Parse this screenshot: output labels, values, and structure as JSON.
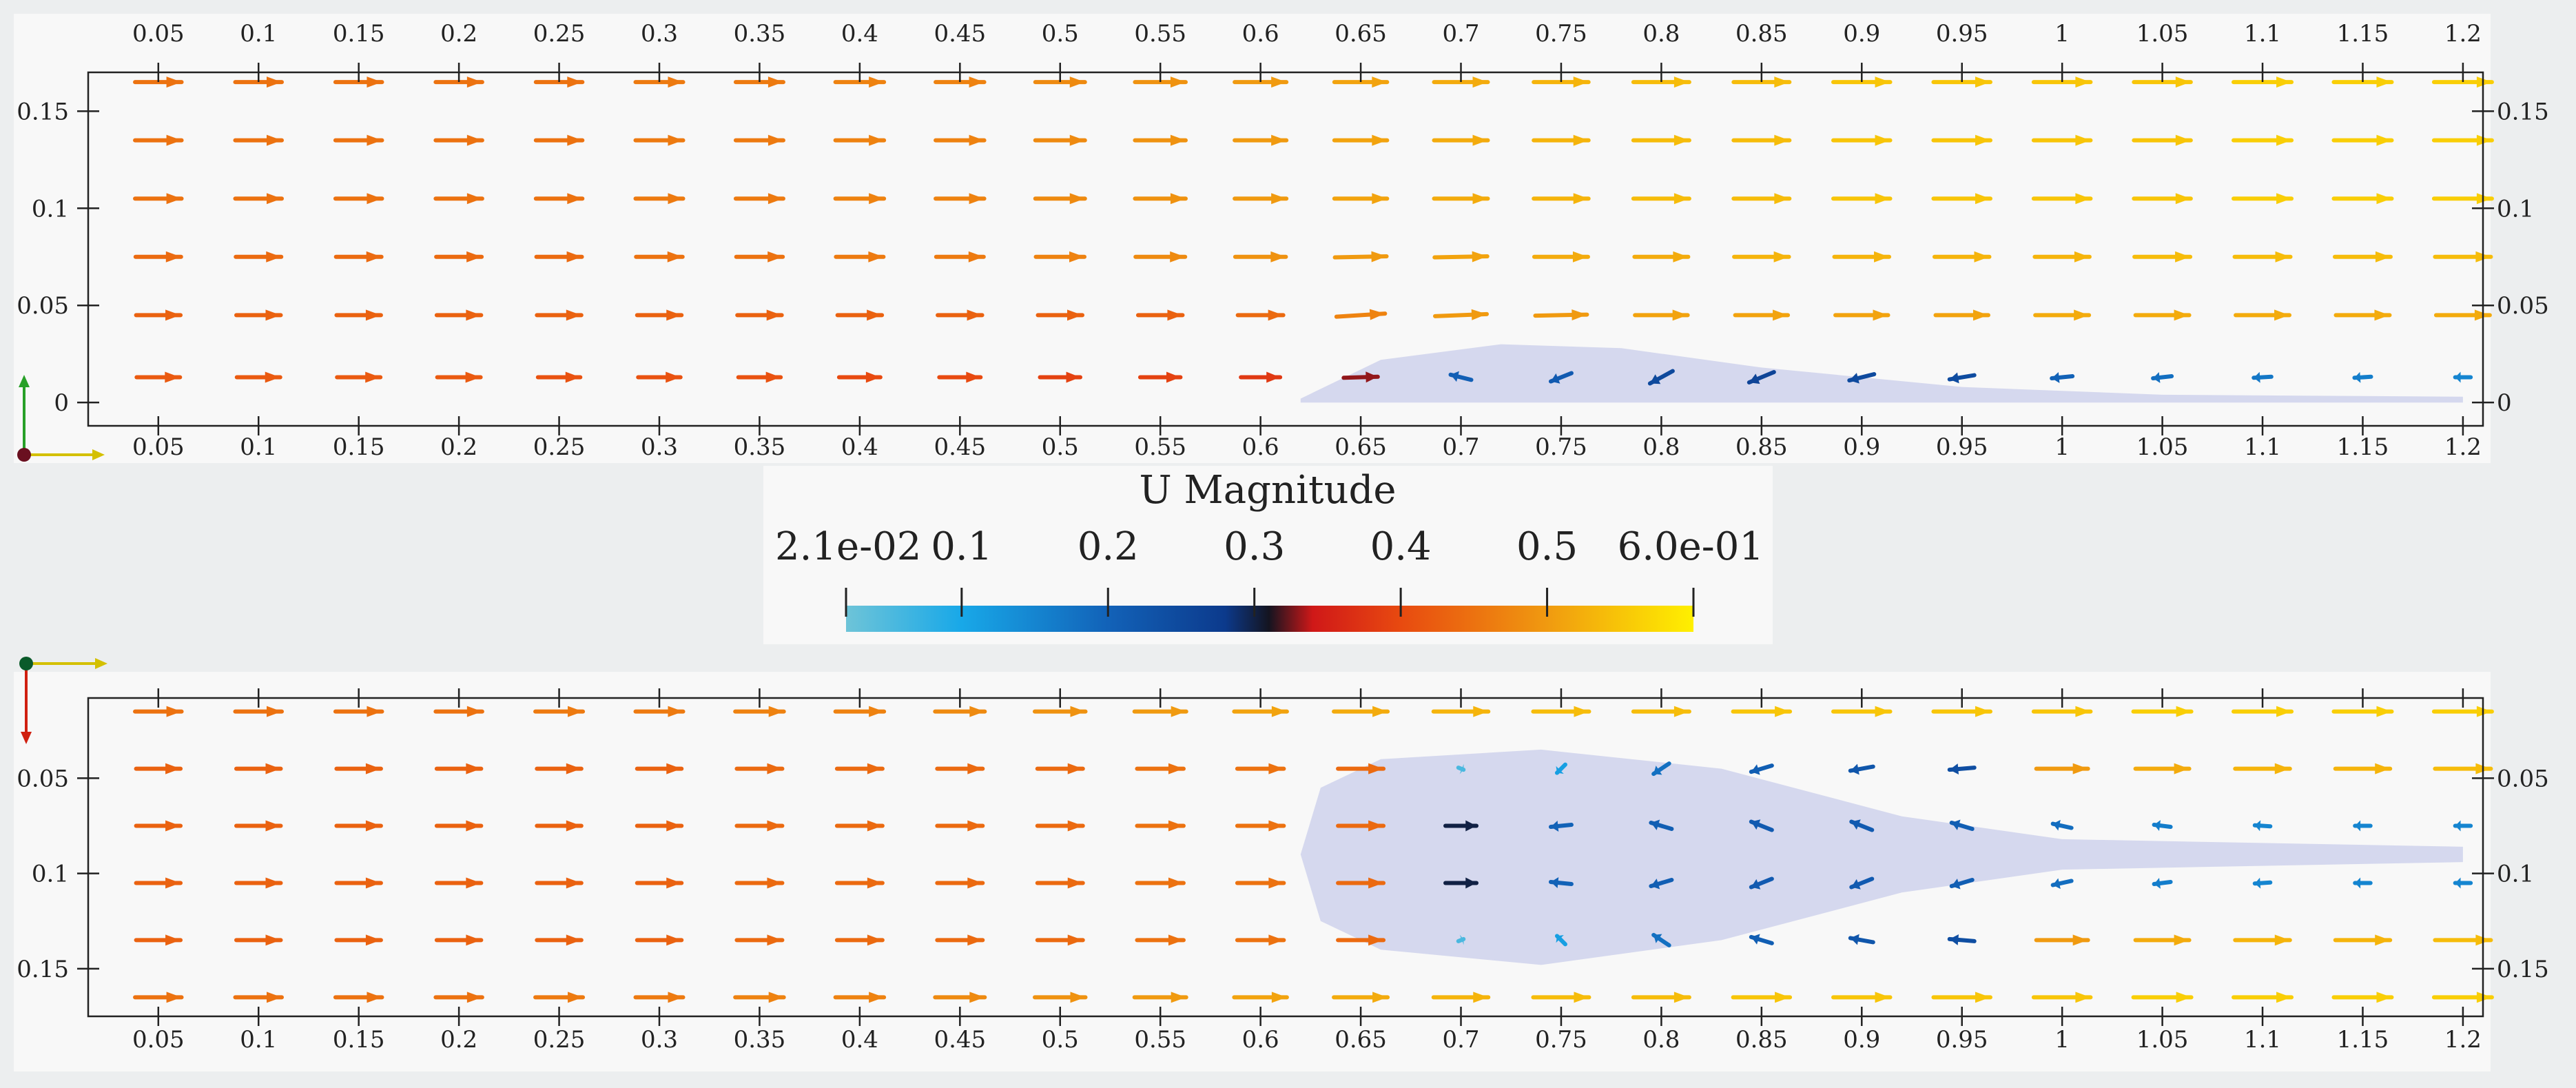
{
  "colors": {
    "background": "#eceeef",
    "panel": "#f8f8f8",
    "particles": "#cfd2ec",
    "axis": "#222222",
    "triad_x": "#d4c000",
    "triad_y_top": "#28a028",
    "triad_y_bottom": "#d02010",
    "triad_origin_top": "#6a1020",
    "triad_origin_bottom": "#0a5a2a"
  },
  "chart_data": [
    {
      "type": "vector-field",
      "view": "side",
      "title": "",
      "variable": "U Magnitude",
      "x_ticks": [
        "0.05",
        "0.1",
        "0.15",
        "0.2",
        "0.25",
        "0.3",
        "0.35",
        "0.4",
        "0.45",
        "0.5",
        "0.55",
        "0.6",
        "0.65",
        "0.7",
        "0.75",
        "0.8",
        "0.85",
        "0.9",
        "0.95",
        "1",
        "1.05",
        "1.1",
        "1.15",
        "1.2"
      ],
      "y_ticks": [
        "0",
        "0.05",
        "0.1",
        "0.15"
      ],
      "xlim": [
        0.015,
        1.21
      ],
      "ylim": [
        -0.012,
        0.17
      ],
      "arrow_x": [
        0.05,
        0.1,
        0.15,
        0.2,
        0.25,
        0.3,
        0.35,
        0.4,
        0.45,
        0.5,
        0.55,
        0.6,
        0.65,
        0.7,
        0.75,
        0.8,
        0.85,
        0.9,
        0.95,
        1.0,
        1.05,
        1.1,
        1.15,
        1.2
      ],
      "arrow_rows": [
        {
          "y": 0.165,
          "u": [
            0.45,
            0.45,
            0.45,
            0.45,
            0.45,
            0.46,
            0.46,
            0.47,
            0.47,
            0.48,
            0.49,
            0.5,
            0.51,
            0.52,
            0.53,
            0.54,
            0.54,
            0.55,
            0.55,
            0.55,
            0.55,
            0.56,
            0.56,
            0.56
          ],
          "v": [
            0,
            0,
            0,
            0,
            0,
            0,
            0,
            0,
            0,
            0,
            0,
            0,
            0,
            0,
            0,
            0,
            0,
            0,
            0,
            0,
            0,
            0,
            0,
            0
          ]
        },
        {
          "y": 0.135,
          "u": [
            0.45,
            0.45,
            0.45,
            0.45,
            0.45,
            0.46,
            0.46,
            0.47,
            0.47,
            0.48,
            0.49,
            0.5,
            0.51,
            0.52,
            0.53,
            0.54,
            0.54,
            0.55,
            0.55,
            0.55,
            0.55,
            0.56,
            0.56,
            0.56
          ],
          "v": [
            0,
            0,
            0,
            0,
            0,
            0,
            0,
            0,
            0,
            0,
            0,
            0,
            0,
            0,
            0,
            0,
            0,
            0,
            0,
            0,
            0,
            0,
            0,
            0
          ]
        },
        {
          "y": 0.105,
          "u": [
            0.45,
            0.45,
            0.45,
            0.45,
            0.45,
            0.46,
            0.46,
            0.47,
            0.47,
            0.48,
            0.49,
            0.5,
            0.51,
            0.52,
            0.53,
            0.54,
            0.54,
            0.55,
            0.55,
            0.55,
            0.55,
            0.56,
            0.56,
            0.56
          ],
          "v": [
            0,
            0,
            0,
            0,
            0,
            0,
            0,
            0,
            0,
            0,
            0,
            0,
            0,
            0,
            0,
            0,
            0,
            0,
            0,
            0,
            0,
            0,
            0,
            0
          ]
        },
        {
          "y": 0.075,
          "u": [
            0.44,
            0.44,
            0.44,
            0.44,
            0.44,
            0.45,
            0.45,
            0.46,
            0.46,
            0.47,
            0.48,
            0.49,
            0.5,
            0.51,
            0.52,
            0.52,
            0.53,
            0.53,
            0.53,
            0.53,
            0.54,
            0.54,
            0.54,
            0.54
          ],
          "v": [
            0,
            0,
            0,
            0,
            0,
            0,
            0,
            0,
            0,
            0,
            0,
            0,
            0.01,
            0.01,
            0,
            0,
            0,
            0,
            0,
            0,
            0,
            0,
            0,
            0
          ]
        },
        {
          "y": 0.045,
          "u": [
            0.43,
            0.43,
            0.43,
            0.43,
            0.43,
            0.43,
            0.43,
            0.43,
            0.43,
            0.43,
            0.43,
            0.44,
            0.47,
            0.5,
            0.5,
            0.51,
            0.51,
            0.51,
            0.51,
            0.52,
            0.52,
            0.52,
            0.52,
            0.52
          ],
          "v": [
            0,
            0,
            0,
            0,
            0,
            0,
            0,
            0,
            0,
            0,
            0,
            0,
            0.03,
            0.02,
            0.01,
            0,
            0,
            0,
            0,
            0,
            0,
            0,
            0,
            0
          ]
        },
        {
          "y": 0.013,
          "u": [
            0.42,
            0.42,
            0.42,
            0.42,
            0.41,
            0.41,
            0.41,
            0.4,
            0.4,
            0.39,
            0.39,
            0.38,
            0.33,
            -0.2,
            -0.2,
            -0.22,
            -0.24,
            -0.24,
            -0.24,
            -0.2,
            -0.18,
            -0.17,
            -0.16,
            -0.15
          ],
          "v": [
            0,
            0,
            0,
            0,
            0,
            0,
            0,
            0,
            0,
            0,
            0,
            0,
            0.01,
            0.05,
            -0.08,
            -0.12,
            -0.1,
            -0.06,
            -0.04,
            -0.02,
            -0.02,
            -0.01,
            -0.01,
            0
          ]
        }
      ],
      "particle_cloud": [
        {
          "x": 0.62,
          "y": 0.002
        },
        {
          "x": 0.66,
          "y": 0.022
        },
        {
          "x": 0.72,
          "y": 0.03
        },
        {
          "x": 0.78,
          "y": 0.028
        },
        {
          "x": 0.85,
          "y": 0.018
        },
        {
          "x": 0.95,
          "y": 0.008
        },
        {
          "x": 1.05,
          "y": 0.004
        },
        {
          "x": 1.2,
          "y": 0.003
        },
        {
          "x": 1.2,
          "y": 0.0
        },
        {
          "x": 0.62,
          "y": 0.0
        }
      ]
    },
    {
      "type": "vector-field",
      "view": "top",
      "title": "",
      "variable": "U Magnitude",
      "x_ticks": [
        "0.05",
        "0.1",
        "0.15",
        "0.2",
        "0.25",
        "0.3",
        "0.35",
        "0.4",
        "0.45",
        "0.5",
        "0.55",
        "0.6",
        "0.65",
        "0.7",
        "0.75",
        "0.8",
        "0.85",
        "0.9",
        "0.95",
        "1",
        "1.05",
        "1.1",
        "1.15",
        "1.2"
      ],
      "y_ticks": [
        "0.05",
        "0.1",
        "0.15"
      ],
      "xlim": [
        0.015,
        1.21
      ],
      "ylim": [
        0.005,
        0.175
      ],
      "y_inverted": true,
      "arrow_x": [
        0.05,
        0.1,
        0.15,
        0.2,
        0.25,
        0.3,
        0.35,
        0.4,
        0.45,
        0.5,
        0.55,
        0.6,
        0.65,
        0.7,
        0.75,
        0.8,
        0.85,
        0.9,
        0.95,
        1.0,
        1.05,
        1.1,
        1.15,
        1.2
      ],
      "arrow_rows": [
        {
          "y": 0.015,
          "u": [
            0.45,
            0.45,
            0.45,
            0.45,
            0.46,
            0.46,
            0.47,
            0.47,
            0.48,
            0.49,
            0.5,
            0.51,
            0.52,
            0.53,
            0.54,
            0.54,
            0.55,
            0.55,
            0.55,
            0.55,
            0.56,
            0.56,
            0.56,
            0.56
          ],
          "v": [
            0,
            0,
            0,
            0,
            0,
            0,
            0,
            0,
            0,
            0,
            0,
            0,
            0,
            0,
            0,
            0,
            0,
            0,
            0,
            0,
            0,
            0,
            0,
            0
          ]
        },
        {
          "y": 0.045,
          "u": [
            0.43,
            0.43,
            0.43,
            0.43,
            0.43,
            0.43,
            0.44,
            0.44,
            0.44,
            0.44,
            0.45,
            0.45,
            0.44,
            0.05,
            -0.08,
            -0.15,
            -0.2,
            -0.22,
            -0.24,
            0.5,
            0.52,
            0.53,
            0.53,
            0.54
          ],
          "v": [
            0,
            0,
            0,
            0,
            0,
            0,
            0,
            0,
            0,
            0,
            0,
            0,
            0,
            0.02,
            0.08,
            0.1,
            0.06,
            0.04,
            0.02,
            0,
            0,
            0,
            0,
            0
          ]
        },
        {
          "y": 0.075,
          "u": [
            0.43,
            0.43,
            0.43,
            0.43,
            0.43,
            0.43,
            0.44,
            0.44,
            0.44,
            0.44,
            0.45,
            0.45,
            0.44,
            0.3,
            -0.2,
            -0.2,
            -0.2,
            -0.2,
            -0.2,
            -0.18,
            -0.16,
            -0.15,
            -0.15,
            -0.15
          ],
          "v": [
            0,
            0,
            0,
            0,
            0,
            0,
            0,
            0,
            0,
            0,
            0,
            0,
            0,
            0,
            0.02,
            -0.06,
            -0.08,
            -0.08,
            -0.06,
            -0.04,
            -0.02,
            -0.01,
            0,
            0
          ]
        },
        {
          "y": 0.105,
          "u": [
            0.43,
            0.43,
            0.43,
            0.43,
            0.43,
            0.43,
            0.44,
            0.44,
            0.44,
            0.44,
            0.45,
            0.45,
            0.44,
            0.3,
            -0.2,
            -0.2,
            -0.2,
            -0.2,
            -0.2,
            -0.18,
            -0.16,
            -0.15,
            -0.15,
            -0.15
          ],
          "v": [
            0,
            0,
            0,
            0,
            0,
            0,
            0,
            0,
            0,
            0,
            0,
            0,
            0,
            0,
            -0.02,
            0.06,
            0.08,
            0.08,
            0.06,
            0.04,
            0.02,
            0.01,
            0,
            0
          ]
        },
        {
          "y": 0.135,
          "u": [
            0.43,
            0.43,
            0.43,
            0.43,
            0.43,
            0.43,
            0.44,
            0.44,
            0.44,
            0.44,
            0.45,
            0.45,
            0.44,
            0.05,
            -0.08,
            -0.15,
            -0.2,
            -0.22,
            -0.24,
            0.5,
            0.52,
            0.53,
            0.53,
            0.54
          ],
          "v": [
            0,
            0,
            0,
            0,
            0,
            0,
            0,
            0,
            0,
            0,
            0,
            0,
            0,
            -0.02,
            -0.08,
            -0.1,
            -0.06,
            -0.04,
            -0.02,
            0,
            0,
            0,
            0,
            0
          ]
        },
        {
          "y": 0.165,
          "u": [
            0.45,
            0.45,
            0.45,
            0.45,
            0.46,
            0.46,
            0.47,
            0.47,
            0.48,
            0.49,
            0.5,
            0.51,
            0.52,
            0.53,
            0.54,
            0.54,
            0.55,
            0.55,
            0.55,
            0.55,
            0.56,
            0.56,
            0.56,
            0.56
          ],
          "v": [
            0,
            0,
            0,
            0,
            0,
            0,
            0,
            0,
            0,
            0,
            0,
            0,
            0,
            0,
            0,
            0,
            0,
            0,
            0,
            0,
            0,
            0,
            0,
            0
          ]
        }
      ],
      "particle_cloud": [
        {
          "x": 0.62,
          "y": 0.09
        },
        {
          "x": 0.63,
          "y": 0.055
        },
        {
          "x": 0.66,
          "y": 0.04
        },
        {
          "x": 0.74,
          "y": 0.035
        },
        {
          "x": 0.83,
          "y": 0.045
        },
        {
          "x": 0.92,
          "y": 0.07
        },
        {
          "x": 1.0,
          "y": 0.082
        },
        {
          "x": 1.2,
          "y": 0.086
        },
        {
          "x": 1.2,
          "y": 0.094
        },
        {
          "x": 1.0,
          "y": 0.098
        },
        {
          "x": 0.92,
          "y": 0.11
        },
        {
          "x": 0.83,
          "y": 0.135
        },
        {
          "x": 0.74,
          "y": 0.148
        },
        {
          "x": 0.66,
          "y": 0.14
        },
        {
          "x": 0.63,
          "y": 0.125
        },
        {
          "x": 0.62,
          "y": 0.09
        }
      ]
    }
  ],
  "colorbar": {
    "title": "U Magnitude",
    "min": 0.021,
    "max": 0.6,
    "min_label": "2.1e-02",
    "max_label": "6.0e-01",
    "ticks": [
      {
        "value": 0.021,
        "label": "2.1e-02"
      },
      {
        "value": 0.1,
        "label": "0.1"
      },
      {
        "value": 0.2,
        "label": "0.2"
      },
      {
        "value": 0.3,
        "label": "0.3"
      },
      {
        "value": 0.4,
        "label": "0.4"
      },
      {
        "value": 0.5,
        "label": "0.5"
      },
      {
        "value": 0.6,
        "label": "6.0e-01"
      }
    ],
    "stops": [
      {
        "value": 0.021,
        "color": "#6ec4d8"
      },
      {
        "value": 0.1,
        "color": "#18a8e8"
      },
      {
        "value": 0.2,
        "color": "#1262b8"
      },
      {
        "value": 0.28,
        "color": "#0c3a8c"
      },
      {
        "value": 0.31,
        "color": "#141420"
      },
      {
        "value": 0.34,
        "color": "#d01818"
      },
      {
        "value": 0.4,
        "color": "#e84a10"
      },
      {
        "value": 0.5,
        "color": "#f09a10"
      },
      {
        "value": 0.6,
        "color": "#fff000"
      }
    ]
  }
}
